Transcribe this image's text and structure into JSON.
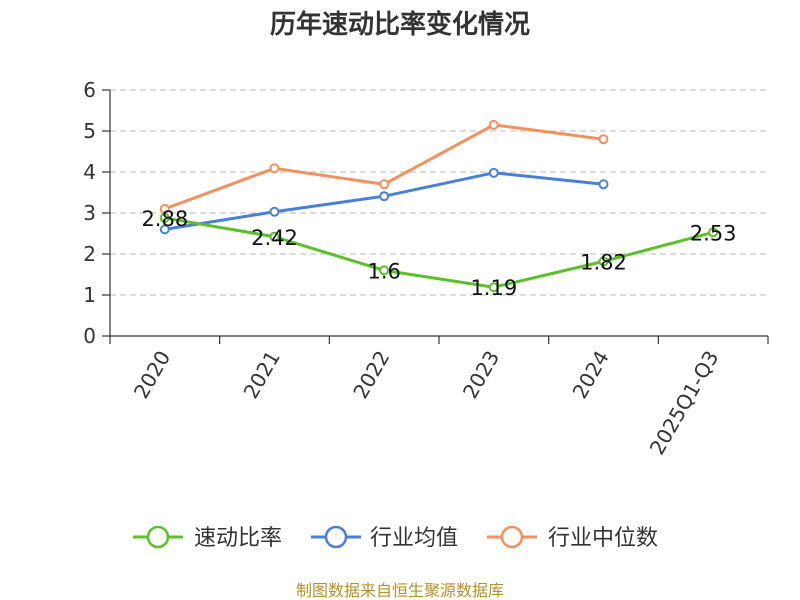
{
  "chart_data": {
    "type": "line",
    "title": "历年速动比率变化情况",
    "xlabel": "",
    "ylabel": "",
    "categories": [
      "2020",
      "2021",
      "2022",
      "2023",
      "2024",
      "2025Q1-Q3"
    ],
    "ylim": [
      0,
      6
    ],
    "yticks": [
      "0",
      "1",
      "2",
      "3",
      "4",
      "5",
      "6"
    ],
    "grid": true,
    "legend_position": "bottom",
    "series": [
      {
        "name": "速动比率",
        "color": "#5dbf2a",
        "values": [
          2.88,
          2.42,
          1.6,
          1.19,
          1.82,
          2.53
        ],
        "labels": [
          "2.88",
          "2.42",
          "1.6",
          "1.19",
          "1.82",
          "2.53"
        ]
      },
      {
        "name": "行业均值",
        "color": "#4a7fd9",
        "values": [
          2.6,
          3.03,
          3.41,
          3.98,
          3.7,
          null
        ]
      },
      {
        "name": "行业中位数",
        "color": "#f39060",
        "values": [
          3.1,
          4.09,
          3.7,
          5.15,
          4.8,
          null
        ]
      }
    ]
  },
  "source": "制图数据来自恒生聚源数据库"
}
